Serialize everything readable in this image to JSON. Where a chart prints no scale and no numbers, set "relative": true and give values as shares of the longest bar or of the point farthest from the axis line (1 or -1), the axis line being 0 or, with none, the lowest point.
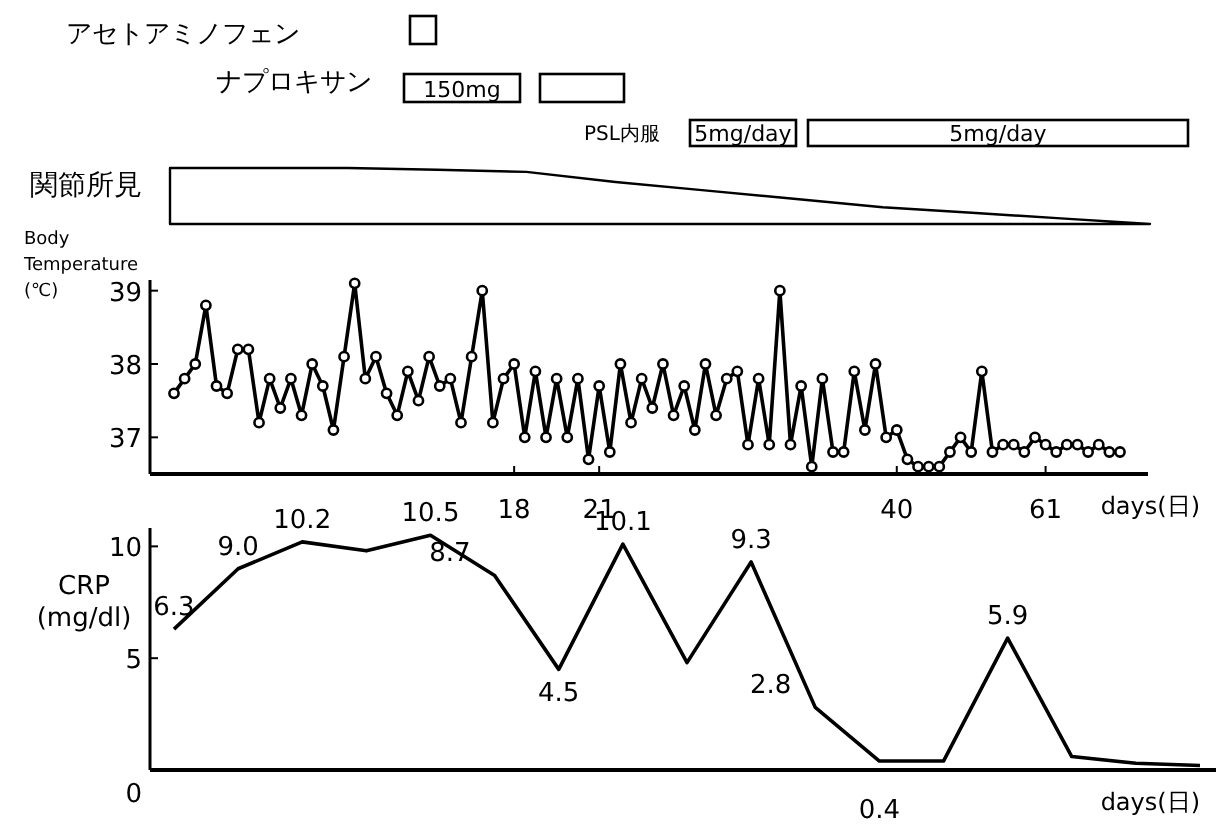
{
  "chart_data": [
    {
      "type": "other",
      "annotations": [
        "アセトアミノフェン",
        "ナプロキサン",
        "150mg",
        "PSL内服",
        "5mg/day",
        "5mg/day"
      ]
    },
    {
      "type": "area",
      "title": "関節所見",
      "relative": true,
      "color": "#000000",
      "categories": [
        null,
        null,
        null,
        null,
        null,
        null,
        null,
        null,
        null,
        null,
        null,
        null
      ],
      "values": [
        1,
        1,
        1,
        0.97,
        0.93,
        0.75,
        0.6,
        0.45,
        0.3,
        0.2,
        0.1,
        0
      ]
    },
    {
      "type": "line",
      "ylabel": "Body Temperature (℃)",
      "xlabel": "days(日)",
      "ylim": [
        36.5,
        39.2
      ],
      "yticks": [
        37,
        38,
        39
      ],
      "marker": "circle",
      "color": "#000000",
      "categories": [
        null,
        null,
        null,
        null,
        null,
        null,
        null,
        null,
        null,
        null,
        null,
        null,
        null,
        null,
        null,
        null,
        null,
        null,
        null,
        null,
        null,
        null,
        null,
        null,
        null,
        null,
        null,
        null,
        null,
        null,
        null,
        null,
        "18",
        null,
        null,
        null,
        null,
        null,
        null,
        null,
        "21",
        null,
        null,
        null,
        null,
        null,
        null,
        null,
        null,
        null,
        null,
        null,
        null,
        null,
        null,
        null,
        null,
        null,
        null,
        null,
        null,
        null,
        null,
        null,
        null,
        null,
        null,
        null,
        "40",
        null,
        null,
        null,
        null,
        null,
        null,
        null,
        null,
        null,
        null,
        null,
        null,
        null,
        "61",
        null,
        null,
        null,
        null,
        null,
        null,
        null
      ],
      "values": [
        37.6,
        37.8,
        38.0,
        38.8,
        37.7,
        37.6,
        38.2,
        38.2,
        37.2,
        37.8,
        37.4,
        37.8,
        37.3,
        38.0,
        37.7,
        37.1,
        38.1,
        39.1,
        37.8,
        38.1,
        37.6,
        37.3,
        37.9,
        37.5,
        38.1,
        37.7,
        37.8,
        37.2,
        38.1,
        39.0,
        37.2,
        37.8,
        38.0,
        37.0,
        37.9,
        37.0,
        37.8,
        37.0,
        37.8,
        36.7,
        37.7,
        36.8,
        38.0,
        37.2,
        37.8,
        37.4,
        38.0,
        37.3,
        37.7,
        37.1,
        38.0,
        37.3,
        37.8,
        37.9,
        36.9,
        37.8,
        36.9,
        39.0,
        36.9,
        37.7,
        36.6,
        37.8,
        36.8,
        36.8,
        37.9,
        37.1,
        38.0,
        37.0,
        37.1,
        36.7,
        36.6,
        36.6,
        36.6,
        36.8,
        37.0,
        36.8,
        37.9,
        36.8,
        36.9,
        36.9,
        36.8,
        37.0,
        36.9,
        36.8,
        36.9,
        36.9,
        36.8,
        36.9,
        36.8,
        36.8
      ]
    },
    {
      "type": "line",
      "ylabel": "CRP (mg/dl)",
      "xlabel": "days(日)",
      "ylim": [
        0,
        11
      ],
      "yticks": [
        0,
        5,
        10
      ],
      "color": "#000000",
      "categories": [
        null,
        null,
        null,
        null,
        null,
        null,
        null,
        null,
        null,
        null,
        null,
        null,
        null,
        null,
        null,
        null,
        null
      ],
      "values": [
        6.3,
        9.0,
        10.2,
        9.8,
        10.5,
        8.7,
        4.5,
        10.1,
        4.8,
        9.3,
        2.8,
        0.4,
        0.4,
        5.9,
        0.6,
        0.3,
        0.2
      ],
      "value_labels": [
        "6.3",
        "9.0",
        "10.2",
        null,
        "10.5",
        "8.7",
        "4.5",
        "10.1",
        null,
        "9.3",
        "2.8",
        "0.4",
        null,
        "5.9",
        null,
        null,
        null
      ]
    }
  ]
}
